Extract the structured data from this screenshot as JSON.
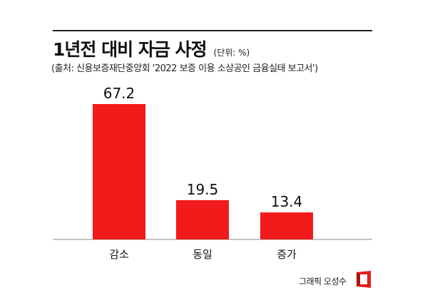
{
  "header": {
    "title": "1년전 대비 자금 사정",
    "unit": "(단위: %)",
    "source": "(출처: 신용보증재단중앙회 '2022 보증 이용 소상공인 금융실태 보고서')"
  },
  "credit": {
    "text": "그래픽 오성수",
    "logo_icon": "red-frame-logo-icon"
  },
  "colors": {
    "bar": "#f21a1a",
    "text": "#111111"
  },
  "chart_data": {
    "type": "bar",
    "categories": [
      "감소",
      "동일",
      "증가"
    ],
    "values": [
      67.2,
      19.5,
      13.4
    ],
    "value_labels": [
      "67.2",
      "19.5",
      "13.4"
    ],
    "title": "1년전 대비 자금 사정",
    "xlabel": "",
    "ylabel": "",
    "ylim": [
      0,
      67.2
    ],
    "grid": false,
    "legend": "none"
  }
}
